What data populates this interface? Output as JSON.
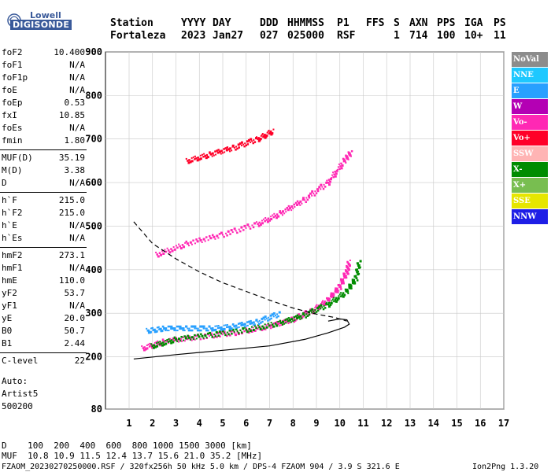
{
  "logo": {
    "line1": "Lowell",
    "line2": "DIGISONDE"
  },
  "header": {
    "labels": [
      "Station",
      "YYYY",
      "DAY",
      "DDD",
      "HHMMSS",
      "P1",
      "FFS",
      "S",
      "AXN",
      "PPS",
      "IGA",
      "PS"
    ],
    "values": [
      "Fortaleza",
      "2023",
      "Jan27",
      "027",
      "025000",
      "RSF",
      "1",
      "714",
      "100",
      "10+",
      "11"
    ]
  },
  "params": {
    "group1": [
      {
        "k": "foF2",
        "v": "10.400"
      },
      {
        "k": "foF1",
        "v": "N/A"
      },
      {
        "k": "foF1p",
        "v": "N/A"
      },
      {
        "k": "foE",
        "v": "N/A"
      },
      {
        "k": "foEp",
        "v": "0.53"
      },
      {
        "k": "fxI",
        "v": "10.85"
      },
      {
        "k": "foEs",
        "v": "N/A"
      },
      {
        "k": "fmin",
        "v": "1.80"
      }
    ],
    "group2": [
      {
        "k": "MUF(D)",
        "v": "35.19"
      },
      {
        "k": "M(D)",
        "v": "3.38"
      },
      {
        "k": "D",
        "v": "N/A"
      }
    ],
    "group3": [
      {
        "k": "h`F",
        "v": "215.0"
      },
      {
        "k": "h`F2",
        "v": "215.0"
      },
      {
        "k": "h`E",
        "v": "N/A"
      },
      {
        "k": "h`Es",
        "v": "N/A"
      }
    ],
    "group4": [
      {
        "k": "hmF2",
        "v": "273.1"
      },
      {
        "k": "hmF1",
        "v": "N/A"
      },
      {
        "k": "hmE",
        "v": "110.0"
      },
      {
        "k": "yF2",
        "v": "53.7"
      },
      {
        "k": "yF1",
        "v": "N/A"
      },
      {
        "k": "yE",
        "v": "20.0"
      },
      {
        "k": "B0",
        "v": "50.7"
      },
      {
        "k": "B1",
        "v": "2.44"
      }
    ],
    "group5": [
      {
        "k": "C-level",
        "v": "22"
      }
    ],
    "auto": [
      "Auto:",
      "Artist5",
      "500200"
    ]
  },
  "legend": [
    {
      "label": "NoVal",
      "color": "#8c8c8c"
    },
    {
      "label": "NNE",
      "color": "#1ec8ff"
    },
    {
      "label": "E",
      "color": "#28a0ff"
    },
    {
      "label": "W",
      "color": "#b400b4"
    },
    {
      "label": "Vo-",
      "color": "#ff28b4"
    },
    {
      "label": "Vo+",
      "color": "#ff0028"
    },
    {
      "label": "SSW",
      "color": "#ffb4b4"
    },
    {
      "label": "X-",
      "color": "#008c00"
    },
    {
      "label": "X+",
      "color": "#78be50"
    },
    {
      "label": "SSE",
      "color": "#e6e600"
    },
    {
      "label": "NNW",
      "color": "#1e1ee6"
    }
  ],
  "footer": {
    "d_row": "D    100  200  400  600  800 1000 1500 3000 [km]",
    "muf_row": "MUF  10.8 10.9 11.5 12.4 13.7 15.6 21.0 35.2 [MHz]",
    "file_info": "FZAOM_20230270250000.RSF / 320fx256h 50 kHz 5.0 km / DPS-4 FZAOM 904 / 3.9 S 321.6 E",
    "version": "Ion2Png 1.3.20"
  },
  "chart_data": {
    "type": "scatter",
    "xlim": [
      1,
      17
    ],
    "ylim": [
      80,
      900
    ],
    "x_ticks": [
      1,
      2,
      3,
      4,
      5,
      6,
      7,
      8,
      9,
      10,
      11,
      12,
      13,
      14,
      15,
      16,
      17
    ],
    "y_ticks": [
      80,
      200,
      300,
      400,
      500,
      600,
      700,
      800,
      900
    ],
    "y_tick_labels": [
      "80",
      "200",
      "300",
      "400",
      "500",
      "600",
      "700",
      "800",
      "900"
    ],
    "grid": true,
    "legend_position": "right",
    "traces": [
      {
        "name": "O-trace",
        "color": "#ff28b4",
        "points": [
          [
            1.6,
            220
          ],
          [
            2.5,
            235
          ],
          [
            4,
            245
          ],
          [
            5.5,
            255
          ],
          [
            7,
            270
          ],
          [
            8,
            285
          ],
          [
            8.8,
            305
          ],
          [
            9.5,
            330
          ],
          [
            10,
            360
          ],
          [
            10.3,
            395
          ],
          [
            10.4,
            420
          ]
        ]
      },
      {
        "name": "X-trace",
        "color": "#008c00",
        "points": [
          [
            2,
            225
          ],
          [
            3,
            240
          ],
          [
            4.5,
            250
          ],
          [
            6,
            262
          ],
          [
            7.5,
            278
          ],
          [
            8.5,
            295
          ],
          [
            9.5,
            320
          ],
          [
            10.3,
            350
          ],
          [
            10.7,
            380
          ],
          [
            10.85,
            420
          ]
        ]
      },
      {
        "name": "E-layer",
        "color": "#28a0ff",
        "points": [
          [
            1.8,
            260
          ],
          [
            2.5,
            265
          ],
          [
            3.5,
            265
          ],
          [
            4.5,
            265
          ],
          [
            5.5,
            270
          ],
          [
            6.5,
            280
          ],
          [
            7.5,
            300
          ]
        ]
      },
      {
        "name": "2F",
        "color": "#ff28b4",
        "points": [
          [
            2.2,
            435
          ],
          [
            3.5,
            460
          ],
          [
            5,
            480
          ],
          [
            6.5,
            505
          ],
          [
            7.5,
            530
          ],
          [
            8.5,
            560
          ],
          [
            9.5,
            600
          ],
          [
            10.2,
            650
          ],
          [
            10.5,
            670
          ]
        ]
      },
      {
        "name": "3F",
        "color": "#ff0028",
        "points": [
          [
            3.5,
            650
          ],
          [
            4.5,
            665
          ],
          [
            5.5,
            680
          ],
          [
            6.5,
            700
          ],
          [
            7.2,
            720
          ]
        ]
      }
    ],
    "profile_solid": [
      [
        1.2,
        195
      ],
      [
        3,
        205
      ],
      [
        5,
        215
      ],
      [
        7,
        225
      ],
      [
        8.5,
        240
      ],
      [
        9.5,
        255
      ],
      [
        10.2,
        268
      ],
      [
        10.4,
        275
      ],
      [
        10.3,
        285
      ],
      [
        10.0,
        287
      ],
      [
        9.5,
        282
      ]
    ],
    "profile_dashed": [
      [
        1.2,
        510
      ],
      [
        2,
        460
      ],
      [
        3,
        425
      ],
      [
        4,
        395
      ],
      [
        5,
        370
      ],
      [
        6,
        350
      ],
      [
        7,
        330
      ],
      [
        8,
        312
      ],
      [
        9,
        298
      ],
      [
        9.8,
        290
      ],
      [
        10.3,
        282
      ]
    ]
  }
}
